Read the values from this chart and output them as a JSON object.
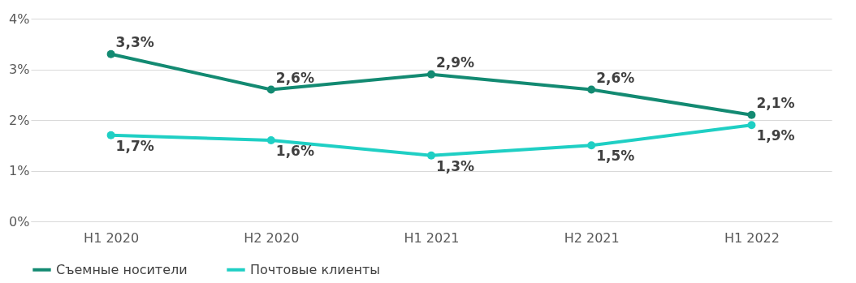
{
  "chart_data": {
    "type": "line",
    "categories": [
      "H1 2020",
      "H2 2020",
      "H1 2021",
      "H2 2021",
      "H1 2022"
    ],
    "series": [
      {
        "name": "Съемные носители",
        "color": "#138a72",
        "values": [
          3.3,
          2.6,
          2.9,
          2.6,
          2.1
        ],
        "value_labels": [
          "3,3%",
          "2,6%",
          "2,9%",
          "2,6%",
          "2,1%"
        ]
      },
      {
        "name": "Почтовые клиенты",
        "color": "#1fcfc4",
        "values": [
          1.7,
          1.6,
          1.3,
          1.5,
          1.9
        ],
        "value_labels": [
          "1,7%",
          "1,6%",
          "1,3%",
          "1,5%",
          "1,9%"
        ]
      }
    ],
    "ylim": [
      0,
      4
    ],
    "yticks": [
      {
        "value": 0,
        "label": "0%"
      },
      {
        "value": 1,
        "label": "1%"
      },
      {
        "value": 2,
        "label": "2%"
      },
      {
        "value": 3,
        "label": "3%"
      },
      {
        "value": 4,
        "label": "4%"
      }
    ],
    "grid": "y",
    "legend": "bottom",
    "marker": "circle",
    "line_style": "solid"
  }
}
